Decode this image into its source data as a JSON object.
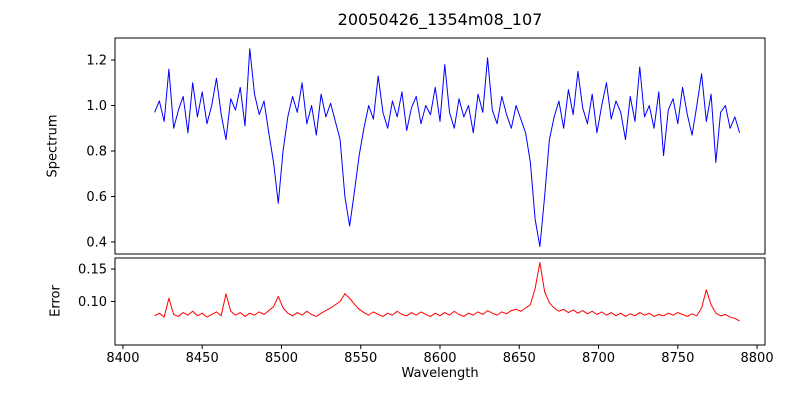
{
  "chart_data": {
    "type": "line",
    "title": "20050426_1354m08_107",
    "xlabel": "Wavelength",
    "grid": false,
    "legend": "none",
    "xlim": [
      8395,
      8805
    ],
    "xticks": [
      8400,
      8450,
      8500,
      8550,
      8600,
      8650,
      8700,
      8750,
      8800
    ],
    "xtick_labels": [
      "8400",
      "8450",
      "8500",
      "8550",
      "8600",
      "8650",
      "8700",
      "8750",
      "8800"
    ],
    "panels": [
      {
        "name": "spectrum",
        "ylabel": "Spectrum",
        "ylim": [
          0.347,
          1.297
        ],
        "yticks": [
          0.4,
          0.6,
          0.8,
          1.0,
          1.2
        ],
        "ytick_labels": [
          "0.4",
          "0.6",
          "0.8",
          "1.0",
          "1.2"
        ],
        "color": "#0000ff",
        "series": "spectrum"
      },
      {
        "name": "error",
        "ylabel": "Error",
        "ylim": [
          0.033,
          0.167
        ],
        "yticks": [
          0.1,
          0.15
        ],
        "ytick_labels": [
          "0.10",
          "0.15"
        ],
        "color": "#ff0000",
        "series": "error"
      }
    ],
    "x": [
      8420,
      8423,
      8426,
      8429,
      8432,
      8435,
      8438,
      8441,
      8444,
      8447,
      8450,
      8453,
      8456,
      8459,
      8462,
      8465,
      8468,
      8471,
      8474,
      8477,
      8480,
      8483,
      8486,
      8489,
      8492,
      8495,
      8498,
      8501,
      8504,
      8507,
      8510,
      8513,
      8516,
      8519,
      8522,
      8525,
      8528,
      8531,
      8534,
      8537,
      8540,
      8543,
      8546,
      8549,
      8552,
      8555,
      8558,
      8561,
      8564,
      8567,
      8570,
      8573,
      8576,
      8579,
      8582,
      8585,
      8588,
      8591,
      8594,
      8597,
      8600,
      8603,
      8606,
      8609,
      8612,
      8615,
      8618,
      8621,
      8624,
      8627,
      8630,
      8633,
      8636,
      8639,
      8642,
      8645,
      8648,
      8651,
      8654,
      8657,
      8660,
      8663,
      8666,
      8669,
      8672,
      8675,
      8678,
      8681,
      8684,
      8687,
      8690,
      8693,
      8696,
      8699,
      8702,
      8705,
      8708,
      8711,
      8714,
      8717,
      8720,
      8723,
      8726,
      8729,
      8732,
      8735,
      8738,
      8741,
      8744,
      8747,
      8750,
      8753,
      8756,
      8759,
      8762,
      8765,
      8768,
      8771,
      8774,
      8777,
      8780,
      8783,
      8786,
      8789
    ],
    "series": {
      "spectrum": [
        0.97,
        1.02,
        0.93,
        1.16,
        0.9,
        0.98,
        1.04,
        0.88,
        1.1,
        0.95,
        1.06,
        0.92,
        1.0,
        1.12,
        0.96,
        0.85,
        1.03,
        0.98,
        1.08,
        0.91,
        1.25,
        1.05,
        0.96,
        1.02,
        0.88,
        0.75,
        0.57,
        0.8,
        0.95,
        1.04,
        0.97,
        1.1,
        0.92,
        1.0,
        0.87,
        1.05,
        0.95,
        1.01,
        0.93,
        0.85,
        0.6,
        0.47,
        0.62,
        0.78,
        0.9,
        1.0,
        0.94,
        1.13,
        0.97,
        0.9,
        1.02,
        0.95,
        1.06,
        0.89,
        0.99,
        1.04,
        0.92,
        1.0,
        0.96,
        1.08,
        0.93,
        1.18,
        0.97,
        0.9,
        1.03,
        0.95,
        1.0,
        0.88,
        1.05,
        0.97,
        1.21,
        0.98,
        0.92,
        1.04,
        0.96,
        0.9,
        1.0,
        0.94,
        0.88,
        0.75,
        0.5,
        0.38,
        0.6,
        0.85,
        0.95,
        1.02,
        0.9,
        1.07,
        0.96,
        1.15,
        0.99,
        0.92,
        1.05,
        0.88,
        1.0,
        1.1,
        0.94,
        1.02,
        0.97,
        0.85,
        1.04,
        0.93,
        1.17,
        0.95,
        1.0,
        0.9,
        1.06,
        0.78,
        0.98,
        1.03,
        0.92,
        1.08,
        0.96,
        0.87,
        1.0,
        1.14,
        0.93,
        1.05,
        0.75,
        0.97,
        1.0,
        0.9,
        0.95,
        0.88
      ],
      "error": [
        0.078,
        0.082,
        0.076,
        0.105,
        0.08,
        0.077,
        0.083,
        0.079,
        0.085,
        0.078,
        0.082,
        0.076,
        0.08,
        0.084,
        0.078,
        0.112,
        0.085,
        0.079,
        0.083,
        0.077,
        0.082,
        0.079,
        0.084,
        0.08,
        0.086,
        0.092,
        0.108,
        0.09,
        0.082,
        0.078,
        0.083,
        0.079,
        0.085,
        0.08,
        0.077,
        0.082,
        0.086,
        0.09,
        0.095,
        0.1,
        0.112,
        0.105,
        0.096,
        0.088,
        0.083,
        0.079,
        0.084,
        0.08,
        0.077,
        0.082,
        0.079,
        0.085,
        0.08,
        0.078,
        0.083,
        0.079,
        0.084,
        0.08,
        0.077,
        0.082,
        0.078,
        0.083,
        0.079,
        0.085,
        0.08,
        0.077,
        0.082,
        0.079,
        0.084,
        0.08,
        0.086,
        0.082,
        0.079,
        0.084,
        0.081,
        0.086,
        0.088,
        0.085,
        0.09,
        0.095,
        0.12,
        0.16,
        0.115,
        0.098,
        0.09,
        0.085,
        0.088,
        0.083,
        0.087,
        0.082,
        0.086,
        0.081,
        0.085,
        0.08,
        0.084,
        0.079,
        0.083,
        0.078,
        0.082,
        0.077,
        0.081,
        0.078,
        0.083,
        0.079,
        0.082,
        0.077,
        0.08,
        0.078,
        0.082,
        0.079,
        0.083,
        0.08,
        0.077,
        0.081,
        0.078,
        0.09,
        0.118,
        0.095,
        0.082,
        0.078,
        0.08,
        0.076,
        0.074,
        0.07
      ]
    }
  }
}
